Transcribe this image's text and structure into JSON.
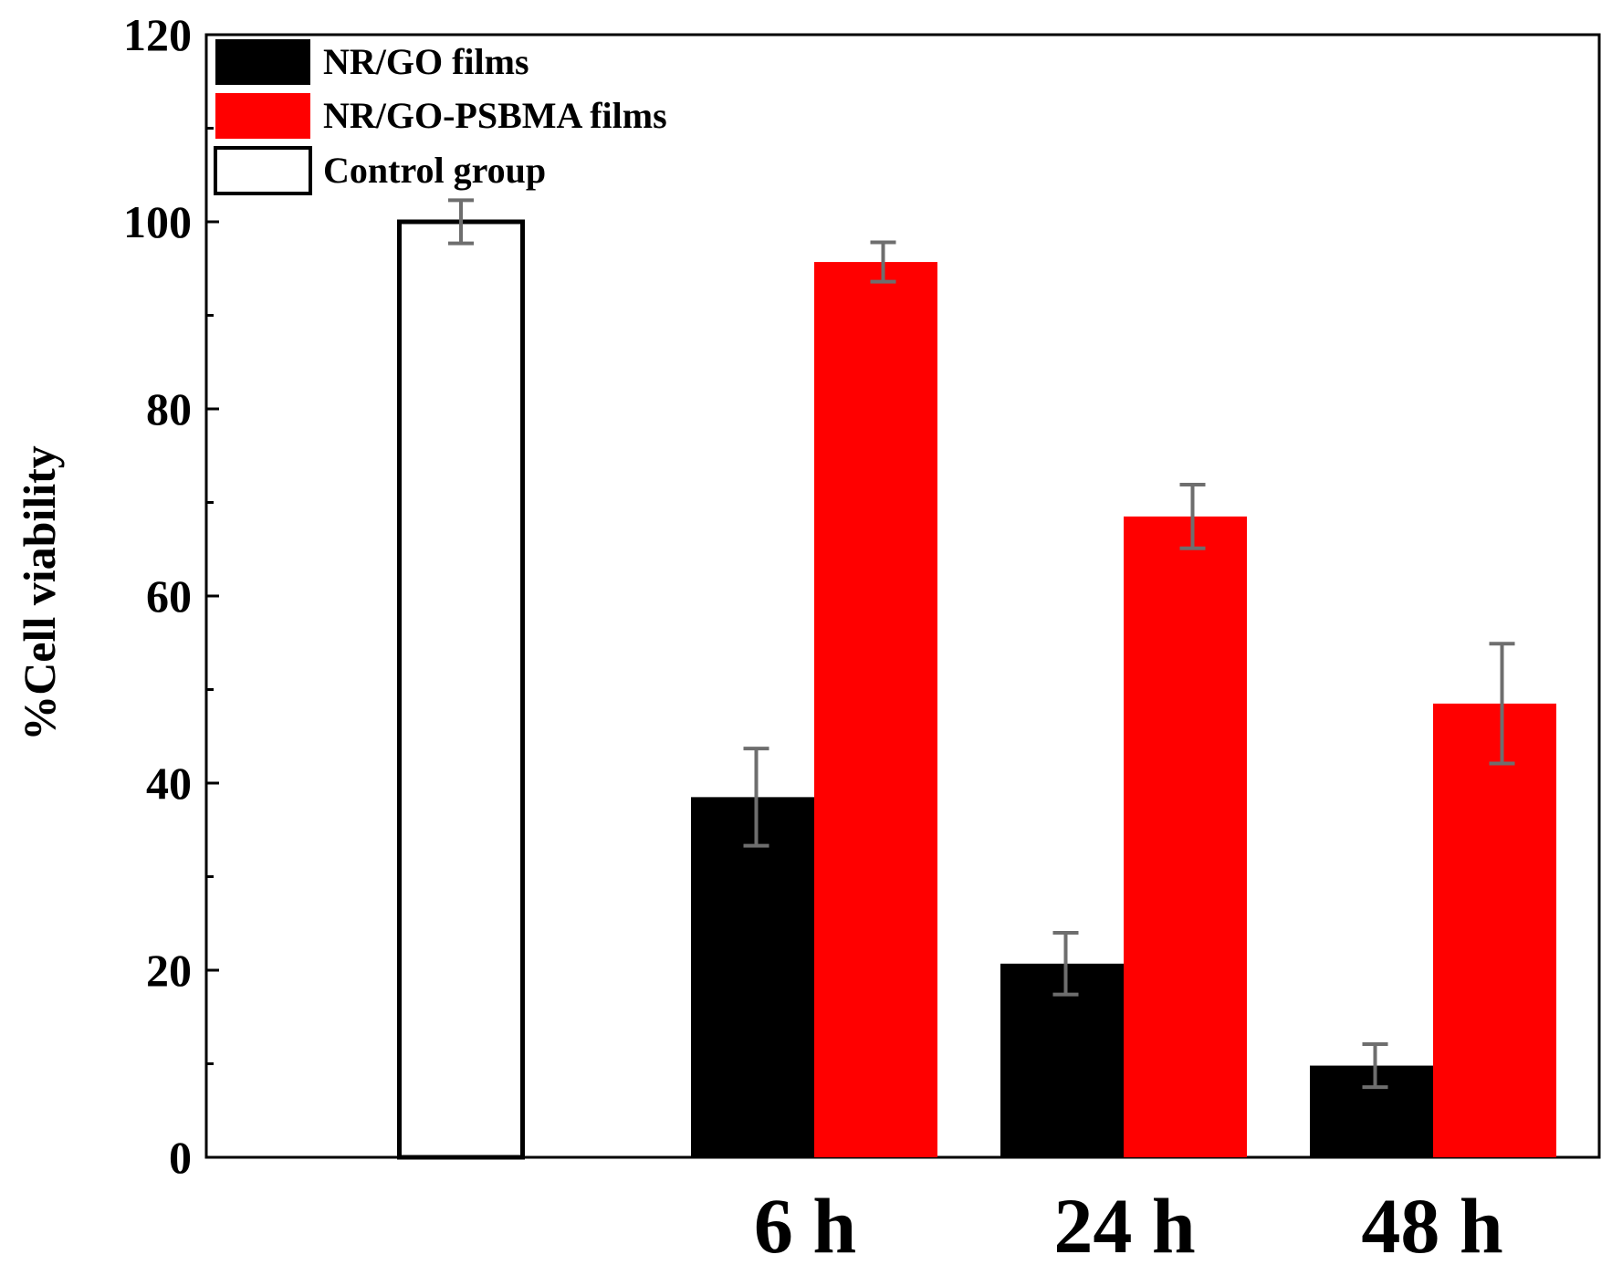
{
  "chart_data": {
    "type": "bar",
    "title": "",
    "xlabel": "",
    "ylabel": "%Cell viability",
    "ylim": [
      0,
      120
    ],
    "y_ticks": [
      0,
      20,
      40,
      60,
      80,
      100,
      120
    ],
    "grid": false,
    "legend_position": "top-left",
    "categories": [
      "",
      "6 h",
      "24 h",
      "48 h"
    ],
    "series": [
      {
        "name": "NR/GO films",
        "color": "#000000",
        "values": [
          null,
          38.5,
          20.7,
          9.8
        ],
        "errors": [
          null,
          5.2,
          3.3,
          2.3
        ]
      },
      {
        "name": "NR/GO-PSBMA films",
        "color": "#ff0000",
        "values": [
          null,
          95.7,
          68.5,
          48.5
        ],
        "errors": [
          null,
          2.1,
          3.4,
          6.4
        ]
      },
      {
        "name": "Control group",
        "color": "#ffffff",
        "outline": "#000000",
        "values": [
          100,
          null,
          null,
          null
        ],
        "errors": [
          2.3,
          null,
          null,
          null
        ]
      }
    ]
  }
}
